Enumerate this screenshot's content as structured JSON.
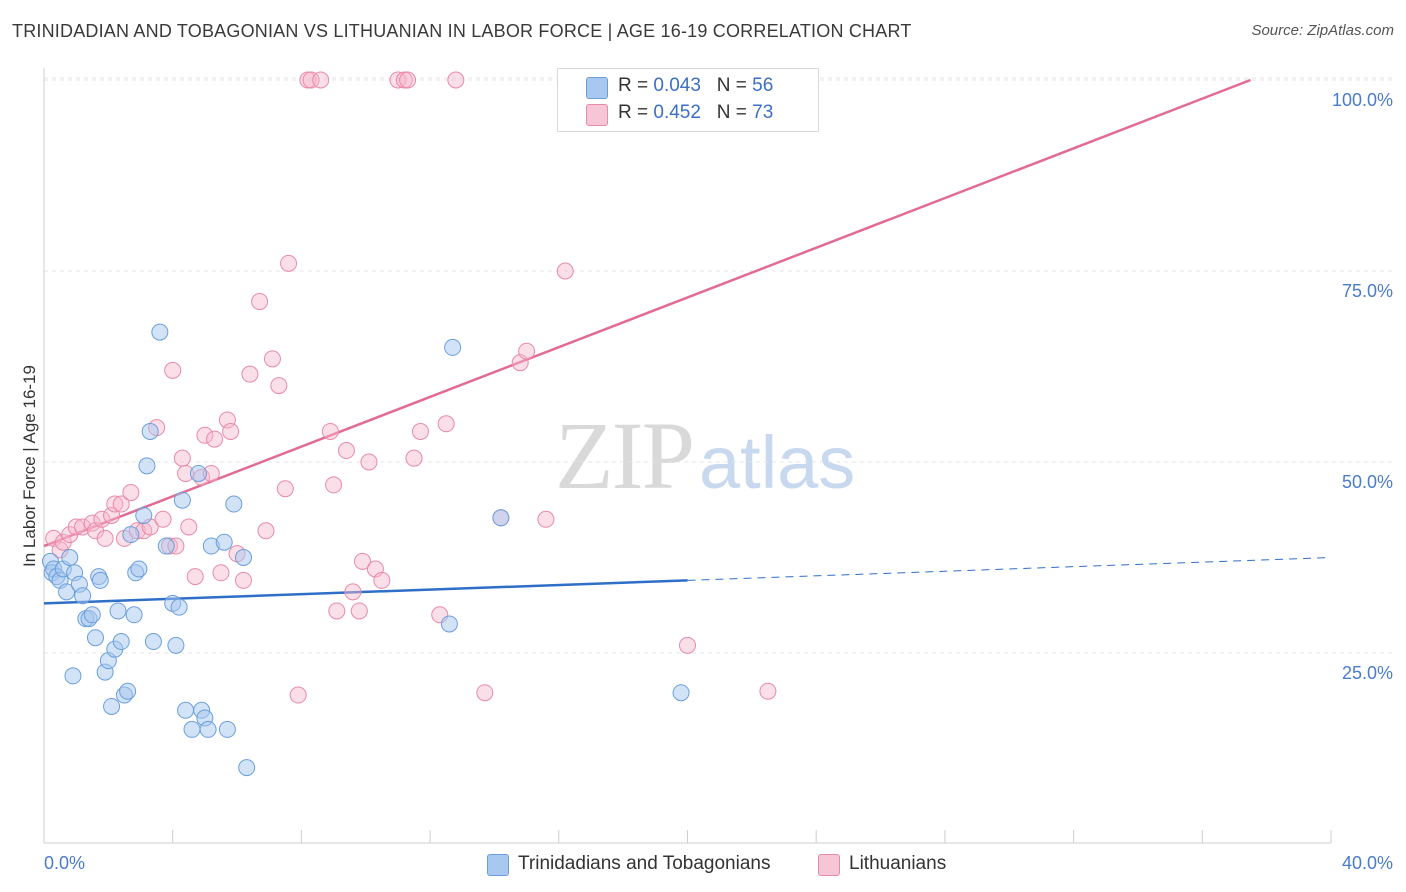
{
  "header": {
    "title": "TRINIDADIAN AND TOBAGONIAN VS LITHUANIAN IN LABOR FORCE | AGE 16-19 CORRELATION CHART",
    "source": "Source: ZipAtlas.com"
  },
  "watermark": {
    "zip": "ZIP",
    "atlas": "atlas"
  },
  "legend": {
    "series1": {
      "r_label": "R =",
      "r_value": "0.043",
      "n_label": "N =",
      "n_value": "56"
    },
    "series2": {
      "r_label": "R =",
      "r_value": "0.452",
      "n_label": "N =",
      "n_value": "73"
    }
  },
  "bottom_legend": {
    "series1": "Trinidadians and Tobagonians",
    "series2": "Lithuanians"
  },
  "colors": {
    "blue_fill": "#a8c8f0",
    "blue_stroke": "#6a9fdc",
    "blue_line": "#2f6fc8",
    "pink_fill": "#f7b8cc",
    "pink_stroke": "#e88aa8",
    "pink_line": "#e36b93",
    "tick_text": "#4a7cc9",
    "grid": "#e4e4e4"
  },
  "chart_data": {
    "type": "scatter",
    "title": "TRINIDADIAN AND TOBAGONIAN VS LITHUANIAN IN LABOR FORCE | AGE 16-19 CORRELATION CHART",
    "xlabel": "",
    "ylabel": "In Labor Force | Age 16-19",
    "xlim": [
      0,
      40
    ],
    "ylim": [
      0,
      103
    ],
    "x_tick_labels": [
      "0.0%",
      "40.0%"
    ],
    "y_ticks": [
      25,
      50,
      75,
      100
    ],
    "y_tick_labels": [
      "25.0%",
      "50.0%",
      "75.0%",
      "100.0%"
    ],
    "grid": true,
    "legend_position": "top-center",
    "series": [
      {
        "name": "Trinidadians and Tobagonians",
        "color": "#a8c8f0",
        "trend": {
          "x": [
            0,
            20
          ],
          "y": [
            31.5,
            34.5
          ],
          "dashed_extension_to": [
            40,
            37.5
          ]
        },
        "points": [
          [
            0.2,
            37
          ],
          [
            0.25,
            35.5
          ],
          [
            0.3,
            36
          ],
          [
            0.4,
            35
          ],
          [
            0.5,
            34.5
          ],
          [
            0.6,
            36
          ],
          [
            0.7,
            33
          ],
          [
            0.8,
            37.5
          ],
          [
            0.9,
            22
          ],
          [
            0.95,
            35.5
          ],
          [
            1.1,
            34
          ],
          [
            1.2,
            32.5
          ],
          [
            1.3,
            29.5
          ],
          [
            1.4,
            29.5
          ],
          [
            1.5,
            30
          ],
          [
            1.6,
            27
          ],
          [
            1.7,
            35
          ],
          [
            1.75,
            34.5
          ],
          [
            1.9,
            22.5
          ],
          [
            2.0,
            24
          ],
          [
            2.1,
            18
          ],
          [
            2.2,
            25.5
          ],
          [
            2.3,
            30.5
          ],
          [
            2.4,
            26.5
          ],
          [
            2.5,
            19.5
          ],
          [
            2.6,
            20
          ],
          [
            2.7,
            40.5
          ],
          [
            2.8,
            30
          ],
          [
            2.85,
            35.5
          ],
          [
            2.95,
            36
          ],
          [
            3.1,
            43
          ],
          [
            3.2,
            49.5
          ],
          [
            3.3,
            54
          ],
          [
            3.4,
            26.5
          ],
          [
            3.6,
            67
          ],
          [
            3.8,
            39
          ],
          [
            4.0,
            31.5
          ],
          [
            4.1,
            26
          ],
          [
            4.2,
            31
          ],
          [
            4.3,
            45
          ],
          [
            4.4,
            17.5
          ],
          [
            4.6,
            15
          ],
          [
            4.8,
            48.5
          ],
          [
            4.9,
            17.5
          ],
          [
            5.0,
            16.5
          ],
          [
            5.1,
            15
          ],
          [
            5.2,
            39
          ],
          [
            5.6,
            39.5
          ],
          [
            5.7,
            15
          ],
          [
            5.9,
            44.5
          ],
          [
            6.2,
            37.5
          ],
          [
            6.3,
            10
          ],
          [
            12.6,
            28.8
          ],
          [
            12.7,
            65
          ],
          [
            14.2,
            42.7
          ],
          [
            19.8,
            19.8
          ]
        ]
      },
      {
        "name": "Lithuanians",
        "color": "#f7b8cc",
        "trend": {
          "x": [
            0,
            37.5
          ],
          "y": [
            39,
            100
          ]
        },
        "points": [
          [
            0.3,
            40
          ],
          [
            0.5,
            38.5
          ],
          [
            0.6,
            39.5
          ],
          [
            0.8,
            40.5
          ],
          [
            1.0,
            41.5
          ],
          [
            1.2,
            41.5
          ],
          [
            1.5,
            42
          ],
          [
            1.6,
            41
          ],
          [
            1.8,
            42.5
          ],
          [
            1.9,
            40
          ],
          [
            2.1,
            43
          ],
          [
            2.2,
            44.5
          ],
          [
            2.4,
            44.5
          ],
          [
            2.5,
            40
          ],
          [
            2.7,
            46
          ],
          [
            2.9,
            41
          ],
          [
            3.1,
            41
          ],
          [
            3.3,
            41.5
          ],
          [
            3.5,
            54.5
          ],
          [
            3.7,
            42.5
          ],
          [
            3.9,
            39
          ],
          [
            4.0,
            62
          ],
          [
            4.1,
            39
          ],
          [
            4.3,
            50.5
          ],
          [
            4.4,
            48.5
          ],
          [
            4.5,
            41.5
          ],
          [
            4.7,
            35
          ],
          [
            4.9,
            48
          ],
          [
            5.0,
            53.5
          ],
          [
            5.2,
            48.5
          ],
          [
            5.3,
            53
          ],
          [
            5.5,
            35.5
          ],
          [
            5.7,
            55.5
          ],
          [
            5.8,
            54
          ],
          [
            6.0,
            38
          ],
          [
            6.2,
            34.5
          ],
          [
            6.4,
            61.5
          ],
          [
            6.7,
            71
          ],
          [
            6.9,
            41
          ],
          [
            7.1,
            63.5
          ],
          [
            7.3,
            60
          ],
          [
            7.5,
            46.5
          ],
          [
            7.6,
            76
          ],
          [
            7.9,
            19.5
          ],
          [
            8.2,
            100
          ],
          [
            8.3,
            100
          ],
          [
            8.6,
            100
          ],
          [
            8.9,
            54
          ],
          [
            9.0,
            47
          ],
          [
            9.1,
            30.5
          ],
          [
            9.4,
            51.5
          ],
          [
            9.6,
            33
          ],
          [
            9.8,
            30.5
          ],
          [
            9.9,
            37
          ],
          [
            10.1,
            50
          ],
          [
            10.3,
            36
          ],
          [
            10.5,
            34.5
          ],
          [
            11.0,
            100
          ],
          [
            11.2,
            100
          ],
          [
            11.3,
            100
          ],
          [
            11.5,
            50.5
          ],
          [
            11.7,
            54
          ],
          [
            12.3,
            30
          ],
          [
            12.5,
            55
          ],
          [
            12.8,
            100
          ],
          [
            13.7,
            19.8
          ],
          [
            14.2,
            42.7
          ],
          [
            14.8,
            63
          ],
          [
            15.0,
            64.5
          ],
          [
            15.6,
            42.5
          ],
          [
            16.2,
            75
          ],
          [
            20.0,
            26
          ],
          [
            22.5,
            20
          ]
        ]
      }
    ]
  }
}
